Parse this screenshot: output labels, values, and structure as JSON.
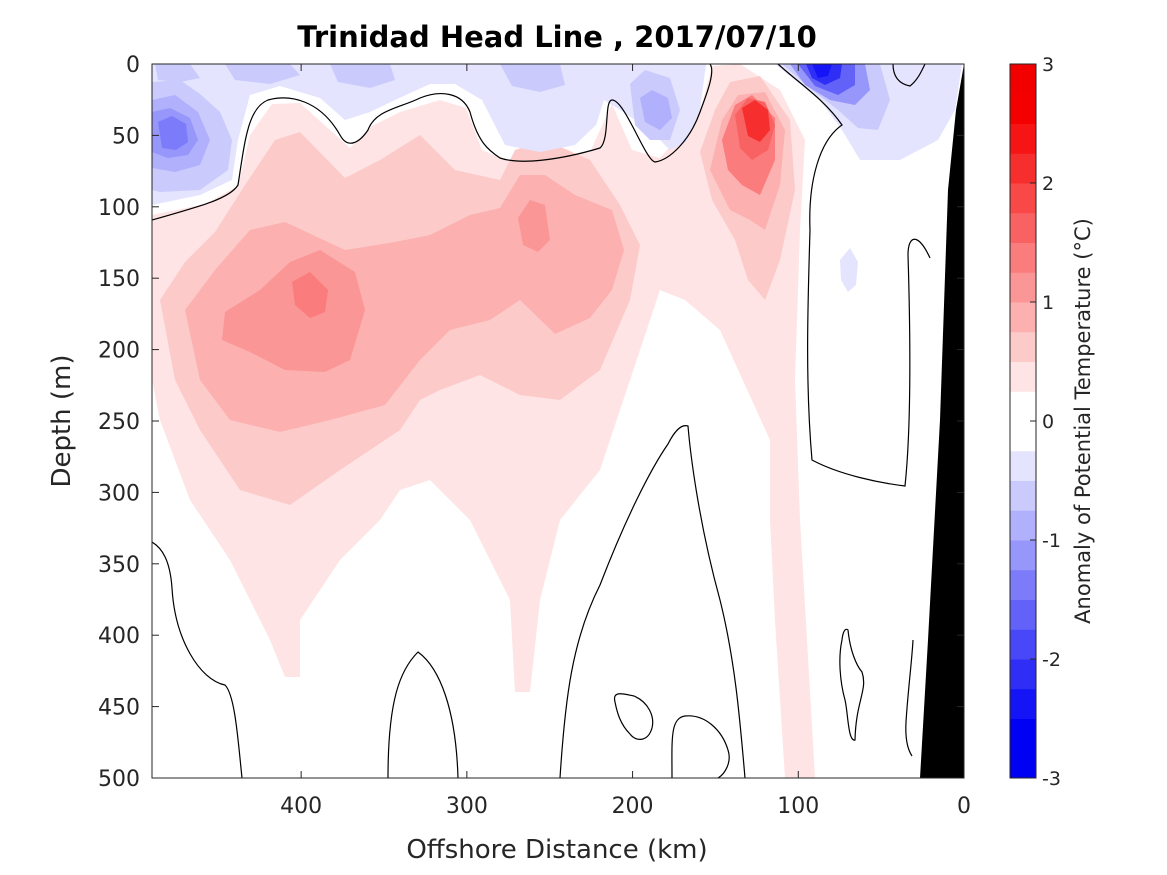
{
  "chart_data": {
    "type": "heatmap",
    "subtype": "filled-contour section",
    "title": "Trinidad Head Line , 2017/07/10",
    "xlabel": "Offshore Distance (km)",
    "ylabel": "Depth (m)",
    "xlim": [
      490,
      0
    ],
    "x_reversed": true,
    "ylim": [
      0,
      500
    ],
    "y_reversed": true,
    "xticks": [
      400,
      300,
      200,
      100,
      0
    ],
    "yticks": [
      0,
      50,
      100,
      150,
      200,
      250,
      300,
      350,
      400,
      450,
      500
    ],
    "xtick_labels": [
      "400",
      "300",
      "200",
      "100",
      "0"
    ],
    "ytick_labels": [
      "0",
      "50",
      "100",
      "150",
      "200",
      "250",
      "300",
      "350",
      "400",
      "450",
      "500"
    ],
    "colorbar": {
      "label": "Anomaly of Potential Temperature (°C)",
      "limits": [
        -3,
        3
      ],
      "ticks": [
        3,
        2,
        1,
        0,
        -1,
        -2,
        -3
      ],
      "tick_labels": [
        "3",
        "2",
        "1",
        "0",
        "-1",
        "-2",
        "-3"
      ],
      "level_step": 0.25,
      "colors_positive": [
        "#ffffff",
        "#fee4e4",
        "#fdcaca",
        "#fcb0b0",
        "#fb9696",
        "#fa7c7c",
        "#f96262",
        "#f84848",
        "#f72e2e",
        "#f61414",
        "#f40000",
        "#f20000"
      ],
      "colors_negative": [
        "#ffffff",
        "#e4e4fe",
        "#cacafd",
        "#b0b0fc",
        "#9696fb",
        "#7c7cfa",
        "#6262f9",
        "#4848f8",
        "#2e2ef7",
        "#1414f6",
        "#0000f4",
        "#0000f2"
      ]
    },
    "anomaly_features": [
      {
        "name": "warm core",
        "x_km": 385,
        "depth_m": 165,
        "anomaly_c": 1.3
      },
      {
        "name": "warm core",
        "x_km": 260,
        "depth_m": 115,
        "anomaly_c": 1.2
      },
      {
        "name": "warm core",
        "x_km": 125,
        "depth_m": 40,
        "anomaly_c": 2.1
      },
      {
        "name": "cold core",
        "x_km": 480,
        "depth_m": 45,
        "anomaly_c": -1.3
      },
      {
        "name": "cold core",
        "x_km": 90,
        "depth_m": 5,
        "anomaly_c": -2.4
      },
      {
        "name": "cold core",
        "x_km": 190,
        "depth_m": 30,
        "anomaly_c": -0.6
      },
      {
        "name": "cold core",
        "x_km": 240,
        "depth_m": 10,
        "anomaly_c": -0.6
      },
      {
        "name": "cold core",
        "x_km": 68,
        "depth_m": 150,
        "anomaly_c": -0.3
      }
    ],
    "zero_contour": true,
    "bathymetry_fill": "#000000"
  }
}
